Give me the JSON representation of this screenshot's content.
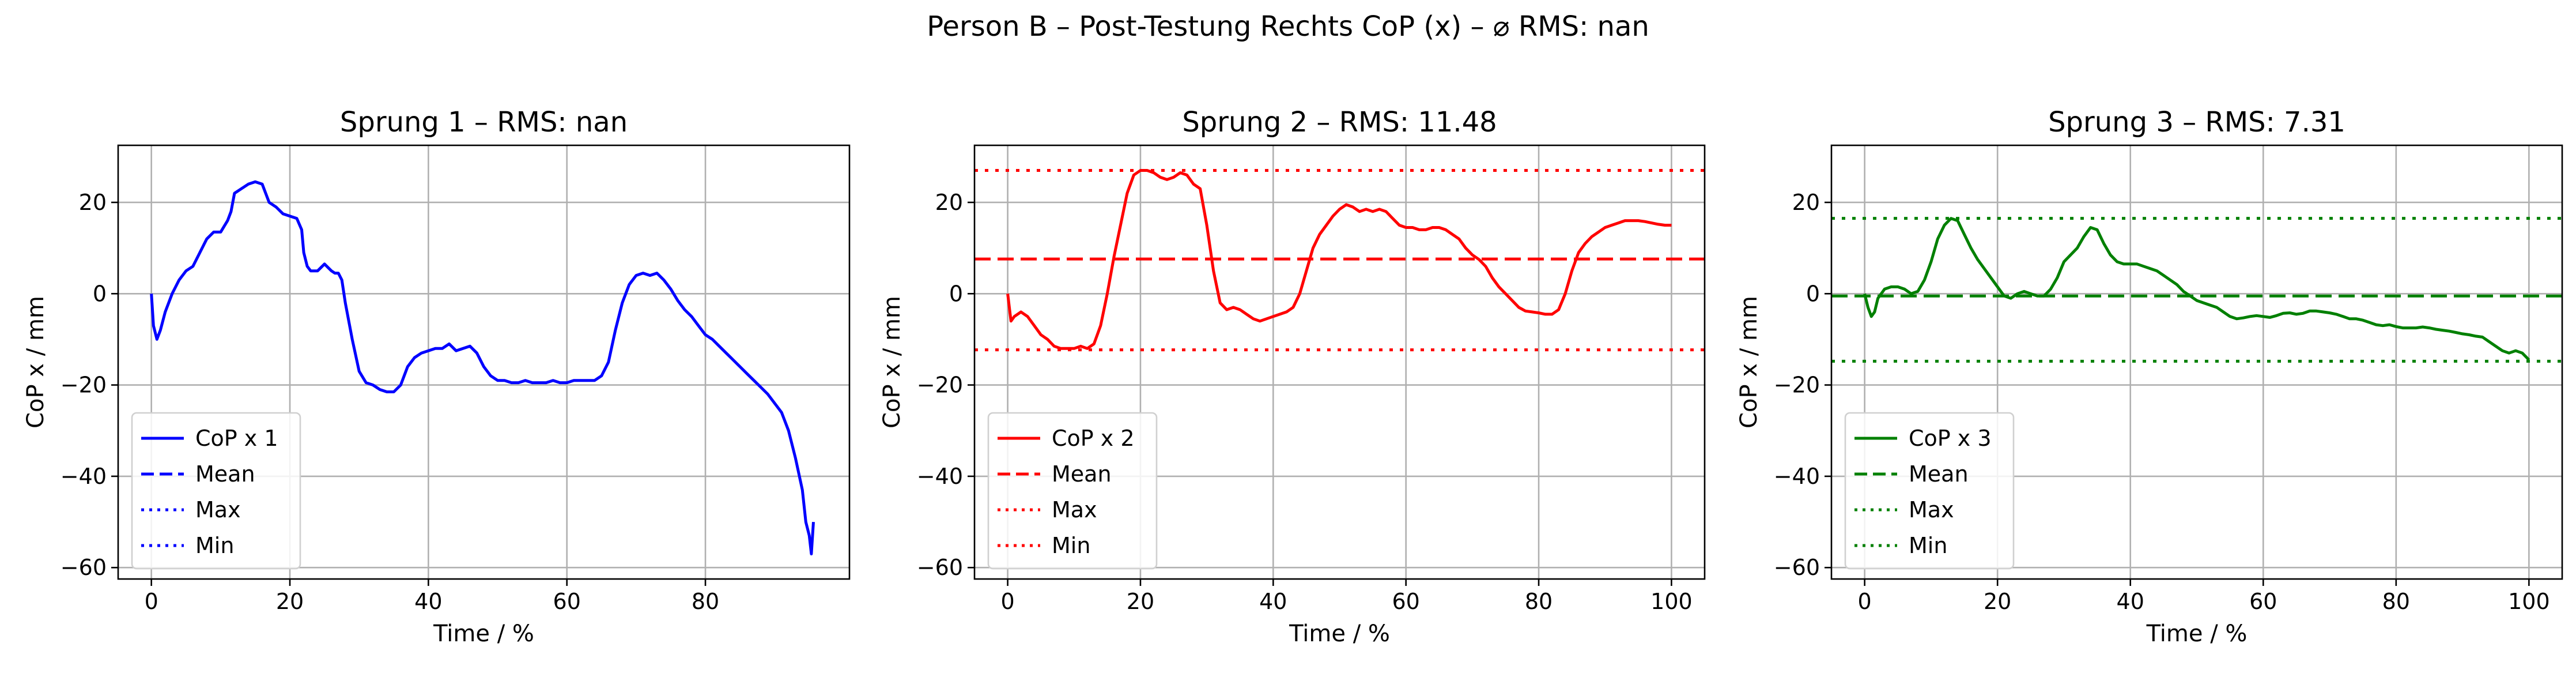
{
  "figure": {
    "title": "Person B – Post-Testung Rechts CoP (x) – ⌀ RMS: nan"
  },
  "chart_data": [
    {
      "type": "line",
      "title": "Sprung 1 – RMS: nan",
      "xlabel": "Time / %",
      "ylabel": "CoP x / mm",
      "color": "#0000ff",
      "xlim": [
        -4.8,
        100.8
      ],
      "ylim": [
        -62.5,
        32.5
      ],
      "xticks": [
        0,
        20,
        40,
        60,
        80
      ],
      "yticks": [
        -60,
        -40,
        -20,
        0,
        20
      ],
      "grid": true,
      "legend_position": "lower-left",
      "legend": [
        "CoP x 1",
        "Mean",
        "Max",
        "Min"
      ],
      "show_reference_lines": false,
      "mean": null,
      "max": null,
      "min": null,
      "series": {
        "name": "CoP x 1",
        "x": [
          0,
          0.3,
          0.8,
          1.3,
          2,
          3,
          4,
          5,
          6,
          7,
          8,
          9,
          10,
          11,
          11.5,
          12,
          13,
          14,
          15,
          16,
          17,
          18,
          19,
          20,
          21,
          21.7,
          22,
          22.5,
          23,
          24,
          25,
          26,
          26.5,
          27,
          27.5,
          28,
          29,
          30,
          31,
          32,
          33,
          34,
          35,
          36,
          37,
          38,
          39,
          40,
          41,
          42,
          43,
          44,
          45,
          46,
          47,
          48,
          49,
          50,
          51,
          52,
          53,
          54,
          55,
          56,
          57,
          58,
          59,
          60,
          61,
          62,
          63,
          64,
          65,
          66,
          67,
          68,
          69,
          70,
          71,
          72,
          73,
          74,
          75,
          76,
          77,
          78,
          79,
          80,
          81,
          82,
          83,
          84,
          85,
          86,
          87,
          88,
          89,
          90,
          91,
          92,
          93,
          94,
          94.5,
          95,
          95.3,
          95.6
        ],
        "y": [
          0,
          -7,
          -10,
          -8,
          -4,
          0,
          3,
          5,
          6,
          9,
          12,
          13.5,
          13.5,
          16,
          18,
          22,
          23,
          24,
          24.5,
          24,
          20,
          19,
          17.5,
          17,
          16.5,
          14,
          9,
          6,
          5,
          5,
          6.5,
          5,
          4.5,
          4.5,
          3,
          -2,
          -10,
          -17,
          -19.5,
          -20,
          -21,
          -21.5,
          -21.5,
          -20,
          -16,
          -14,
          -13,
          -12.5,
          -12,
          -12,
          -11,
          -12.5,
          -12,
          -11.5,
          -13,
          -16,
          -18,
          -19,
          -19,
          -19.5,
          -19.5,
          -19,
          -19.5,
          -19.5,
          -19.5,
          -19,
          -19.5,
          -19.5,
          -19,
          -19,
          -19,
          -19,
          -18,
          -15,
          -8,
          -2,
          2,
          4,
          4.5,
          4,
          4.5,
          3,
          1,
          -1.5,
          -3.5,
          -5,
          -7,
          -9,
          -10,
          -11.5,
          -13,
          -14.5,
          -16,
          -17.5,
          -19,
          -20.5,
          -22,
          -24,
          -26,
          -30,
          -36,
          -43,
          -50,
          -53,
          -57,
          -50
        ]
      }
    },
    {
      "type": "line",
      "title": "Sprung 2 – RMS: 11.48",
      "xlabel": "Time / %",
      "ylabel": "CoP x / mm",
      "color": "#ff0000",
      "xlim": [
        -5,
        105
      ],
      "ylim": [
        -62.5,
        32.5
      ],
      "xticks": [
        0,
        20,
        40,
        60,
        80,
        100
      ],
      "yticks": [
        -60,
        -40,
        -20,
        0,
        20
      ],
      "grid": true,
      "legend_position": "lower-left",
      "legend": [
        "CoP x 2",
        "Mean",
        "Max",
        "Min"
      ],
      "show_reference_lines": true,
      "mean": 7.6,
      "max": 27,
      "min": -12.3,
      "series": {
        "name": "CoP x 2",
        "x": [
          0,
          0.5,
          1,
          2,
          3,
          4,
          5,
          6,
          7,
          8,
          9,
          10,
          11,
          12,
          13,
          14,
          15,
          16,
          17,
          18,
          19,
          20,
          21,
          22,
          23,
          24,
          25,
          26,
          27,
          28,
          29,
          30,
          31,
          32,
          33,
          34,
          35,
          36,
          37,
          38,
          39,
          40,
          41,
          42,
          43,
          44,
          45,
          46,
          47,
          48,
          49,
          50,
          51,
          52,
          53,
          54,
          55,
          56,
          57,
          58,
          59,
          60,
          61,
          62,
          63,
          64,
          65,
          66,
          67,
          68,
          69,
          70,
          71,
          72,
          73,
          74,
          75,
          76,
          77,
          78,
          79,
          80,
          81,
          82,
          83,
          84,
          85,
          86,
          87,
          88,
          89,
          90,
          91,
          92,
          93,
          94,
          95,
          96,
          97,
          98,
          99,
          100
        ],
        "y": [
          0,
          -6,
          -5,
          -4,
          -5,
          -7,
          -9,
          -10,
          -11.5,
          -12,
          -12,
          -12,
          -11.5,
          -12,
          -11,
          -7,
          0,
          8,
          15,
          22,
          26,
          27,
          27,
          26.5,
          25.5,
          25,
          25.5,
          26.5,
          26,
          24,
          23,
          15,
          5,
          -2,
          -3.5,
          -3,
          -3.5,
          -4.5,
          -5.5,
          -6,
          -5.5,
          -5,
          -4.5,
          -4,
          -3,
          0,
          5,
          10,
          13,
          15,
          17,
          18.5,
          19.5,
          19,
          18,
          18.5,
          18,
          18.5,
          18,
          16.5,
          15,
          14.5,
          14.5,
          14,
          14,
          14.5,
          14.5,
          14,
          13,
          12,
          10,
          8.5,
          7.5,
          6,
          3.5,
          1.5,
          0,
          -1.5,
          -3,
          -3.8,
          -4,
          -4.2,
          -4.5,
          -4.5,
          -3.5,
          0,
          5,
          9,
          11,
          12.5,
          13.5,
          14.5,
          15,
          15.5,
          16,
          16,
          16,
          15.8,
          15.5,
          15.2,
          15,
          15
        ]
      }
    },
    {
      "type": "line",
      "title": "Sprung 3 – RMS: 7.31",
      "xlabel": "Time / %",
      "ylabel": "CoP x / mm",
      "color": "#008000",
      "xlim": [
        -5,
        105
      ],
      "ylim": [
        -62.5,
        32.5
      ],
      "xticks": [
        0,
        20,
        40,
        60,
        80,
        100
      ],
      "yticks": [
        -60,
        -40,
        -20,
        0,
        20
      ],
      "grid": true,
      "legend_position": "lower-left",
      "legend": [
        "CoP x 3",
        "Mean",
        "Max",
        "Min"
      ],
      "show_reference_lines": true,
      "mean": -0.5,
      "max": 16.5,
      "min": -14.8,
      "series": {
        "name": "CoP x 3",
        "x": [
          0,
          0.5,
          1,
          1.5,
          2,
          3,
          4,
          5,
          6,
          7,
          8,
          9,
          10,
          11,
          12,
          13,
          14,
          15,
          16,
          17,
          18,
          19,
          20,
          21,
          22,
          23,
          24,
          25,
          26,
          27,
          28,
          29,
          30,
          31,
          32,
          33,
          34,
          35,
          36,
          37,
          38,
          39,
          40,
          41,
          42,
          43,
          44,
          45,
          46,
          47,
          48,
          49,
          50,
          51,
          52,
          53,
          54,
          55,
          56,
          57,
          58,
          59,
          60,
          61,
          62,
          63,
          64,
          65,
          66,
          67,
          68,
          69,
          70,
          71,
          72,
          73,
          74,
          75,
          76,
          77,
          78,
          79,
          80,
          81,
          82,
          83,
          84,
          85,
          86,
          87,
          88,
          89,
          90,
          91,
          92,
          93,
          94,
          95,
          96,
          97,
          98,
          99,
          100
        ],
        "y": [
          0,
          -3,
          -5,
          -4,
          -1,
          1,
          1.5,
          1.5,
          1,
          0,
          0.5,
          3,
          7,
          12,
          15,
          16.5,
          16,
          13,
          10,
          7.5,
          5.5,
          3.5,
          1.5,
          -0.5,
          -1,
          0,
          0.5,
          0,
          -0.5,
          -0.5,
          1,
          3.5,
          7,
          8.5,
          10,
          12.5,
          14.5,
          14,
          11,
          8.5,
          7,
          6.5,
          6.5,
          6.5,
          6,
          5.5,
          5,
          4,
          3,
          2,
          0.5,
          -0.5,
          -1.5,
          -2,
          -2.5,
          -3,
          -4,
          -5,
          -5.5,
          -5.3,
          -5,
          -4.8,
          -5,
          -5.2,
          -4.8,
          -4.3,
          -4.2,
          -4.5,
          -4.3,
          -3.8,
          -3.8,
          -4,
          -4.2,
          -4.5,
          -5,
          -5.5,
          -5.5,
          -5.8,
          -6.3,
          -6.8,
          -7,
          -6.8,
          -7.2,
          -7.5,
          -7.5,
          -7.5,
          -7.3,
          -7.5,
          -7.8,
          -8,
          -8.2,
          -8.5,
          -8.8,
          -9,
          -9.3,
          -9.5,
          -10.5,
          -11.5,
          -12.5,
          -13,
          -12.5,
          -13,
          -14.5
        ]
      }
    }
  ]
}
